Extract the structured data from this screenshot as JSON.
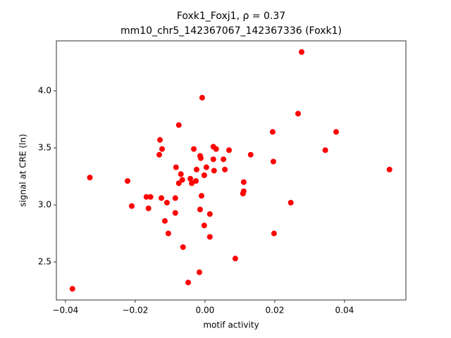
{
  "chart_data": {
    "type": "scatter",
    "title": [
      "Foxk1_Foxj1, ρ = 0.37",
      "mm10_chr5_142367067_142367336 (Foxk1)"
    ],
    "x_label": "motif activity",
    "y_label": "signal at CRE (ln)",
    "color": "#ff0000",
    "xlim": [
      -0.0426,
      0.0576
    ],
    "ylim": [
      2.167,
      4.438
    ],
    "xticks": [
      {
        "value": -0.04,
        "label": "−0.04"
      },
      {
        "value": -0.02,
        "label": "−0.02"
      },
      {
        "value": 0,
        "label": "0.00"
      },
      {
        "value": 0.02,
        "label": "0.02"
      },
      {
        "value": 0.04,
        "label": "0.04"
      }
    ],
    "yticks": [
      2.5,
      {
        "value": 3,
        "label": "3.0"
      },
      3.5,
      {
        "value": 4,
        "label": "4.0"
      }
    ],
    "grid": false,
    "x": [
      -0.038,
      -0.033,
      -0.0222,
      -0.021,
      -0.0168,
      -0.0156,
      -0.0162,
      -0.0129,
      -0.0123,
      -0.0131,
      -0.0125,
      -0.0109,
      -0.0115,
      -0.0105,
      -0.0085,
      -0.0085,
      -0.0083,
      -0.0075,
      -0.0075,
      -0.0069,
      -0.0065,
      -0.0063,
      -0.0048,
      -0.0042,
      -0.0038,
      -0.0032,
      -0.0026,
      -0.0024,
      -0.0016,
      -0.0014,
      -0.0014,
      -0.0012,
      -0.001,
      -0.0008,
      -0.0002,
      -0.0002,
      0.0004,
      0.0014,
      0.0014,
      0.0024,
      0.0024,
      0.0026,
      0.0032,
      0.0053,
      0.0057,
      0.0069,
      0.0087,
      0.0109,
      0.0111,
      0.0111,
      0.0131,
      0.0194,
      0.0196,
      0.0198,
      0.0246,
      0.0267,
      0.0277,
      0.0345,
      0.0376,
      0.0529
    ],
    "values": [
      2.265,
      3.24,
      3.21,
      2.99,
      3.07,
      3.07,
      2.97,
      3.57,
      3.49,
      3.44,
      3.06,
      3.02,
      2.86,
      2.75,
      3.06,
      2.93,
      3.33,
      3.7,
      3.19,
      3.27,
      3.22,
      2.63,
      2.32,
      3.23,
      3.19,
      3.49,
      3.21,
      3.31,
      2.41,
      2.96,
      3.43,
      3.41,
      3.08,
      3.94,
      2.82,
      3.26,
      3.33,
      2.92,
      2.72,
      3.51,
      3.4,
      3.3,
      3.49,
      3.4,
      3.31,
      3.48,
      2.53,
      3.1,
      3.2,
      3.12,
      3.44,
      3.64,
      3.38,
      2.75,
      3.02,
      3.8,
      4.34,
      3.48,
      3.64,
      3.31
    ]
  }
}
